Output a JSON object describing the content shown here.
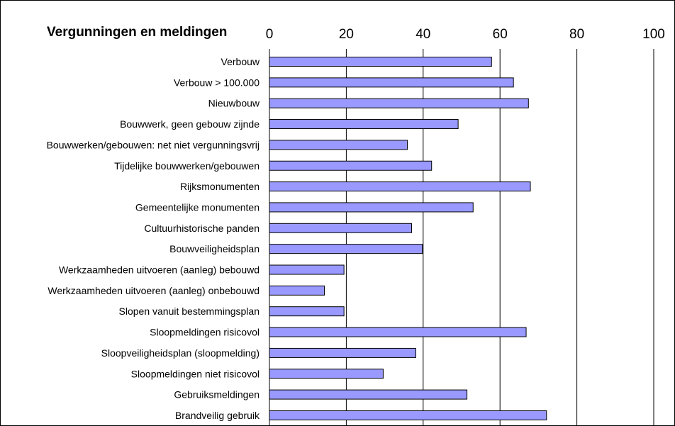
{
  "chart_data": {
    "type": "bar",
    "orientation": "horizontal",
    "title": "Vergunningen en meldingen",
    "xlabel": "",
    "ylabel": "",
    "xlim": [
      0,
      100
    ],
    "x_ticks": [
      "0",
      "20",
      "40",
      "60",
      "80",
      "100"
    ],
    "grid": true,
    "legend": "none",
    "categories": [
      "Verbouw",
      "Verbouw > 100.000",
      "Nieuwbouw",
      "Bouwwerk, geen gebouw zijnde",
      "Bouwwerken/gebouwen: net niet vergunningsvrij",
      "Tijdelijke bouwwerken/gebouwen",
      "Rijksmonumenten",
      "Gemeentelijke monumenten",
      "Cultuurhistorische panden",
      "Bouwveiligheidsplan",
      "Werkzaamheden uitvoeren (aanleg) bebouwd",
      "Werkzaamheden uitvoeren (aanleg) onbebouwd",
      "Slopen vanuit bestemmingsplan",
      "Sloopmeldingen risicovol",
      "Sloopveiligheidsplan (sloopmelding)",
      "Sloopmeldingen niet risicovol",
      "Gebruiksmeldingen",
      "Brandveilig gebruik"
    ],
    "values": [
      57.8,
      63.5,
      67.4,
      49.1,
      35.9,
      42.2,
      67.9,
      53.0,
      37.0,
      39.8,
      19.4,
      14.3,
      19.4,
      66.8,
      38.1,
      29.6,
      51.4,
      72.1
    ],
    "colors": {
      "bar_fill": "#9999ff",
      "bar_stroke": "#000000",
      "gridline": "#000000"
    }
  }
}
